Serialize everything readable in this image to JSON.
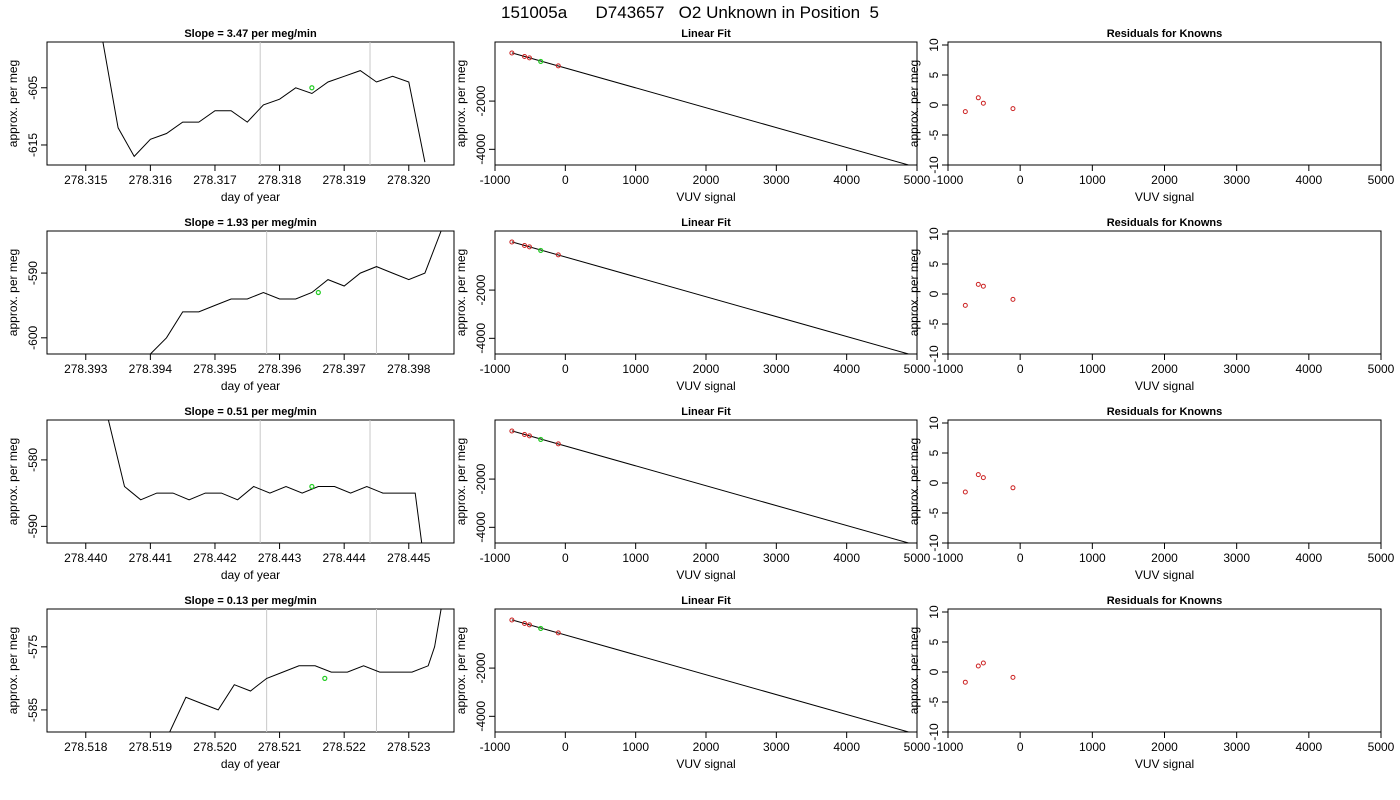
{
  "figure_title": "151005a      D743657   O2 Unknown in Position  5",
  "colors": {
    "trace": "#000000",
    "fit_line": "#000000",
    "known_points": "#cc2222",
    "highlight_point": "#22cc22",
    "vertical_markers": "#c8c8c8"
  },
  "chart_data": [
    {
      "type": "line",
      "panel": "timeseries",
      "row": 1,
      "title": "Slope =  3.47  per meg/min",
      "xlabel": "day of year",
      "ylabel": "approx. per meg",
      "xlim": [
        278.3144,
        278.3207
      ],
      "ylim": [
        -618.5,
        -597
      ],
      "xticks": [
        "278.315",
        "278.316",
        "278.317",
        "278.318",
        "278.319",
        "278.320"
      ],
      "yticks": [
        "-605",
        "-615"
      ],
      "vlines": [
        278.3177,
        278.3194
      ],
      "highlight": {
        "x": 278.3185,
        "y": -605
      },
      "x": [
        278.31525,
        278.3155,
        278.31575,
        278.316,
        278.31625,
        278.3165,
        278.31675,
        278.317,
        278.31725,
        278.3175,
        278.31775,
        278.318,
        278.31825,
        278.3185,
        278.31875,
        278.319,
        278.31925,
        278.3195,
        278.31975,
        278.32,
        278.32025
      ],
      "y": [
        -596,
        -612,
        -617,
        -614,
        -613,
        -611,
        -611,
        -609,
        -609,
        -611,
        -608,
        -607,
        -605,
        -606,
        -604,
        -603,
        -602,
        -604,
        -603,
        -604,
        -618
      ]
    },
    {
      "type": "line",
      "panel": "linear_fit",
      "row": 1,
      "title": "Linear Fit",
      "xlabel": "VUV signal",
      "ylabel": "approx. per meg",
      "xlim": [
        -1000,
        5000
      ],
      "ylim": [
        -4650,
        450
      ],
      "xticks": [
        "-1000",
        "0",
        "1000",
        "2000",
        "3000",
        "4000",
        "5000"
      ],
      "yticks": [
        "-2000",
        "-4000"
      ],
      "line": {
        "x": [
          -760,
          4880
        ],
        "y": [
          0,
          -4650
        ]
      },
      "knowns": {
        "x": [
          -760,
          -580,
          -510,
          -100
        ],
        "y": [
          -5,
          -150,
          -210,
          -540
        ]
      },
      "highlight": {
        "x": -350,
        "y": -355
      }
    },
    {
      "type": "scatter",
      "panel": "residuals",
      "row": 1,
      "title": "Residuals for Knowns",
      "xlabel": "VUV signal",
      "ylabel": "approx. per meg",
      "xlim": [
        -1000,
        5000
      ],
      "ylim": [
        -10,
        10.5
      ],
      "xticks": [
        "-1000",
        "0",
        "1000",
        "2000",
        "3000",
        "4000",
        "5000"
      ],
      "yticks": [
        "10",
        "5",
        "0",
        "-5",
        "-10"
      ],
      "x": [
        -760,
        -580,
        -510,
        -100
      ],
      "y": [
        -1.1,
        1.2,
        0.3,
        -0.6
      ]
    },
    {
      "type": "line",
      "panel": "timeseries",
      "row": 2,
      "title": "Slope =  1.93  per meg/min",
      "xlabel": "day of year",
      "ylabel": "approx. per meg",
      "xlim": [
        278.3924,
        278.3987
      ],
      "ylim": [
        -602.5,
        -583.5
      ],
      "xticks": [
        "278.393",
        "278.394",
        "278.395",
        "278.396",
        "278.397",
        "278.398"
      ],
      "yticks": [
        "-590",
        "-600"
      ],
      "vlines": [
        278.3958,
        278.3975
      ],
      "highlight": {
        "x": 278.3966,
        "y": -593
      },
      "x": [
        278.394,
        278.39425,
        278.3945,
        278.39475,
        278.395,
        278.39525,
        278.3955,
        278.39575,
        278.396,
        278.39625,
        278.3965,
        278.39675,
        278.397,
        278.39725,
        278.3975,
        278.39775,
        278.398,
        278.39825,
        278.3985
      ],
      "y": [
        -602.5,
        -600,
        -596,
        -596,
        -595,
        -594,
        -594,
        -593,
        -594,
        -594,
        -593,
        -591,
        -592,
        -590,
        -589,
        -590,
        -591,
        -590,
        -583.5
      ]
    },
    {
      "type": "line",
      "panel": "linear_fit",
      "row": 2,
      "title": "Linear Fit",
      "xlabel": "VUV signal",
      "ylabel": "approx. per meg",
      "xlim": [
        -1000,
        5000
      ],
      "ylim": [
        -4650,
        450
      ],
      "xticks": [
        "-1000",
        "0",
        "1000",
        "2000",
        "3000",
        "4000",
        "5000"
      ],
      "yticks": [
        "-2000",
        "-4000"
      ],
      "line": {
        "x": [
          -760,
          4880
        ],
        "y": [
          0,
          -4650
        ]
      },
      "knowns": {
        "x": [
          -760,
          -580,
          -510,
          -100
        ],
        "y": [
          -5,
          -150,
          -210,
          -540
        ]
      },
      "highlight": {
        "x": -350,
        "y": -355
      }
    },
    {
      "type": "scatter",
      "panel": "residuals",
      "row": 2,
      "title": "Residuals for Knowns",
      "xlabel": "VUV signal",
      "ylabel": "approx. per meg",
      "xlim": [
        -1000,
        5000
      ],
      "ylim": [
        -10,
        10.5
      ],
      "xticks": [
        "-1000",
        "0",
        "1000",
        "2000",
        "3000",
        "4000",
        "5000"
      ],
      "yticks": [
        "10",
        "5",
        "0",
        "-5",
        "-10"
      ],
      "x": [
        -760,
        -580,
        -510,
        -100
      ],
      "y": [
        -1.9,
        1.6,
        1.3,
        -0.9
      ]
    },
    {
      "type": "line",
      "panel": "timeseries",
      "row": 3,
      "title": "Slope =  0.51  per meg/min",
      "xlabel": "day of year",
      "ylabel": "approx. per meg",
      "xlim": [
        278.4394,
        278.4457
      ],
      "ylim": [
        -592.5,
        -574
      ],
      "xticks": [
        "278.440",
        "278.441",
        "278.442",
        "278.443",
        "278.444",
        "278.445"
      ],
      "yticks": [
        "-580",
        "-590"
      ],
      "vlines": [
        278.4427,
        278.4444
      ],
      "highlight": {
        "x": 278.4435,
        "y": -584
      },
      "x": [
        278.44035,
        278.4406,
        278.44085,
        278.4411,
        278.44135,
        278.4416,
        278.44185,
        278.4421,
        278.44235,
        278.4426,
        278.44285,
        278.4431,
        278.44335,
        278.4436,
        278.44385,
        278.4441,
        278.44435,
        278.4446,
        278.44485,
        278.4451,
        278.4452
      ],
      "y": [
        -574,
        -584,
        -586,
        -585,
        -585,
        -586,
        -585,
        -585,
        -586,
        -584,
        -585,
        -584,
        -585,
        -584,
        -584,
        -585,
        -584,
        -585,
        -585,
        -585,
        -592.5
      ]
    },
    {
      "type": "line",
      "panel": "linear_fit",
      "row": 3,
      "title": "Linear Fit",
      "xlabel": "VUV signal",
      "ylabel": "approx. per meg",
      "xlim": [
        -1000,
        5000
      ],
      "ylim": [
        -4650,
        450
      ],
      "xticks": [
        "-1000",
        "0",
        "1000",
        "2000",
        "3000",
        "4000",
        "5000"
      ],
      "yticks": [
        "-2000",
        "-4000"
      ],
      "line": {
        "x": [
          -760,
          4880
        ],
        "y": [
          0,
          -4650
        ]
      },
      "knowns": {
        "x": [
          -760,
          -580,
          -510,
          -100
        ],
        "y": [
          -5,
          -150,
          -210,
          -540
        ]
      },
      "highlight": {
        "x": -350,
        "y": -355
      }
    },
    {
      "type": "scatter",
      "panel": "residuals",
      "row": 3,
      "title": "Residuals for Knowns",
      "xlabel": "VUV signal",
      "ylabel": "approx. per meg",
      "xlim": [
        -1000,
        5000
      ],
      "ylim": [
        -10,
        10.5
      ],
      "xticks": [
        "-1000",
        "0",
        "1000",
        "2000",
        "3000",
        "4000",
        "5000"
      ],
      "yticks": [
        "10",
        "5",
        "0",
        "-5",
        "-10"
      ],
      "x": [
        -760,
        -580,
        -510,
        -100
      ],
      "y": [
        -1.5,
        1.4,
        0.9,
        -0.8
      ]
    },
    {
      "type": "line",
      "panel": "timeseries",
      "row": 4,
      "title": "Slope =  0.13  per meg/min",
      "xlabel": "day of year",
      "ylabel": "approx. per meg",
      "xlim": [
        278.5174,
        278.5237
      ],
      "ylim": [
        -588.5,
        -569
      ],
      "xticks": [
        "278.518",
        "278.519",
        "278.520",
        "278.521",
        "278.522",
        "278.523"
      ],
      "yticks": [
        "-575",
        "-585"
      ],
      "vlines": [
        278.5208,
        278.5225
      ],
      "highlight": {
        "x": 278.5217,
        "y": -580
      },
      "x": [
        278.5193,
        278.51955,
        278.5198,
        278.52005,
        278.5203,
        278.52055,
        278.5208,
        278.52105,
        278.5213,
        278.52155,
        278.5218,
        278.52205,
        278.5223,
        278.52255,
        278.5228,
        278.52305,
        278.5233,
        278.5234,
        278.5235
      ],
      "y": [
        -588.5,
        -583,
        -584,
        -585,
        -581,
        -582,
        -580,
        -579,
        -578,
        -578,
        -579,
        -579,
        -578,
        -579,
        -579,
        -579,
        -578,
        -575,
        -569
      ]
    },
    {
      "type": "line",
      "panel": "linear_fit",
      "row": 4,
      "title": "Linear Fit",
      "xlabel": "VUV signal",
      "ylabel": "approx. per meg",
      "xlim": [
        -1000,
        5000
      ],
      "ylim": [
        -4650,
        450
      ],
      "xticks": [
        "-1000",
        "0",
        "1000",
        "2000",
        "3000",
        "4000",
        "5000"
      ],
      "yticks": [
        "-2000",
        "-4000"
      ],
      "line": {
        "x": [
          -760,
          4880
        ],
        "y": [
          0,
          -4650
        ]
      },
      "knowns": {
        "x": [
          -760,
          -580,
          -510,
          -100
        ],
        "y": [
          -5,
          -150,
          -210,
          -540
        ]
      },
      "highlight": {
        "x": -350,
        "y": -355
      }
    },
    {
      "type": "scatter",
      "panel": "residuals",
      "row": 4,
      "title": "Residuals for Knowns",
      "xlabel": "VUV signal",
      "ylabel": "approx. per meg",
      "xlim": [
        -1000,
        5000
      ],
      "ylim": [
        -10,
        10.5
      ],
      "xticks": [
        "-1000",
        "0",
        "1000",
        "2000",
        "3000",
        "4000",
        "5000"
      ],
      "yticks": [
        "10",
        "5",
        "0",
        "-5",
        "-10"
      ],
      "x": [
        -760,
        -580,
        -510,
        -100
      ],
      "y": [
        -1.7,
        1.0,
        1.5,
        -0.9
      ]
    }
  ]
}
